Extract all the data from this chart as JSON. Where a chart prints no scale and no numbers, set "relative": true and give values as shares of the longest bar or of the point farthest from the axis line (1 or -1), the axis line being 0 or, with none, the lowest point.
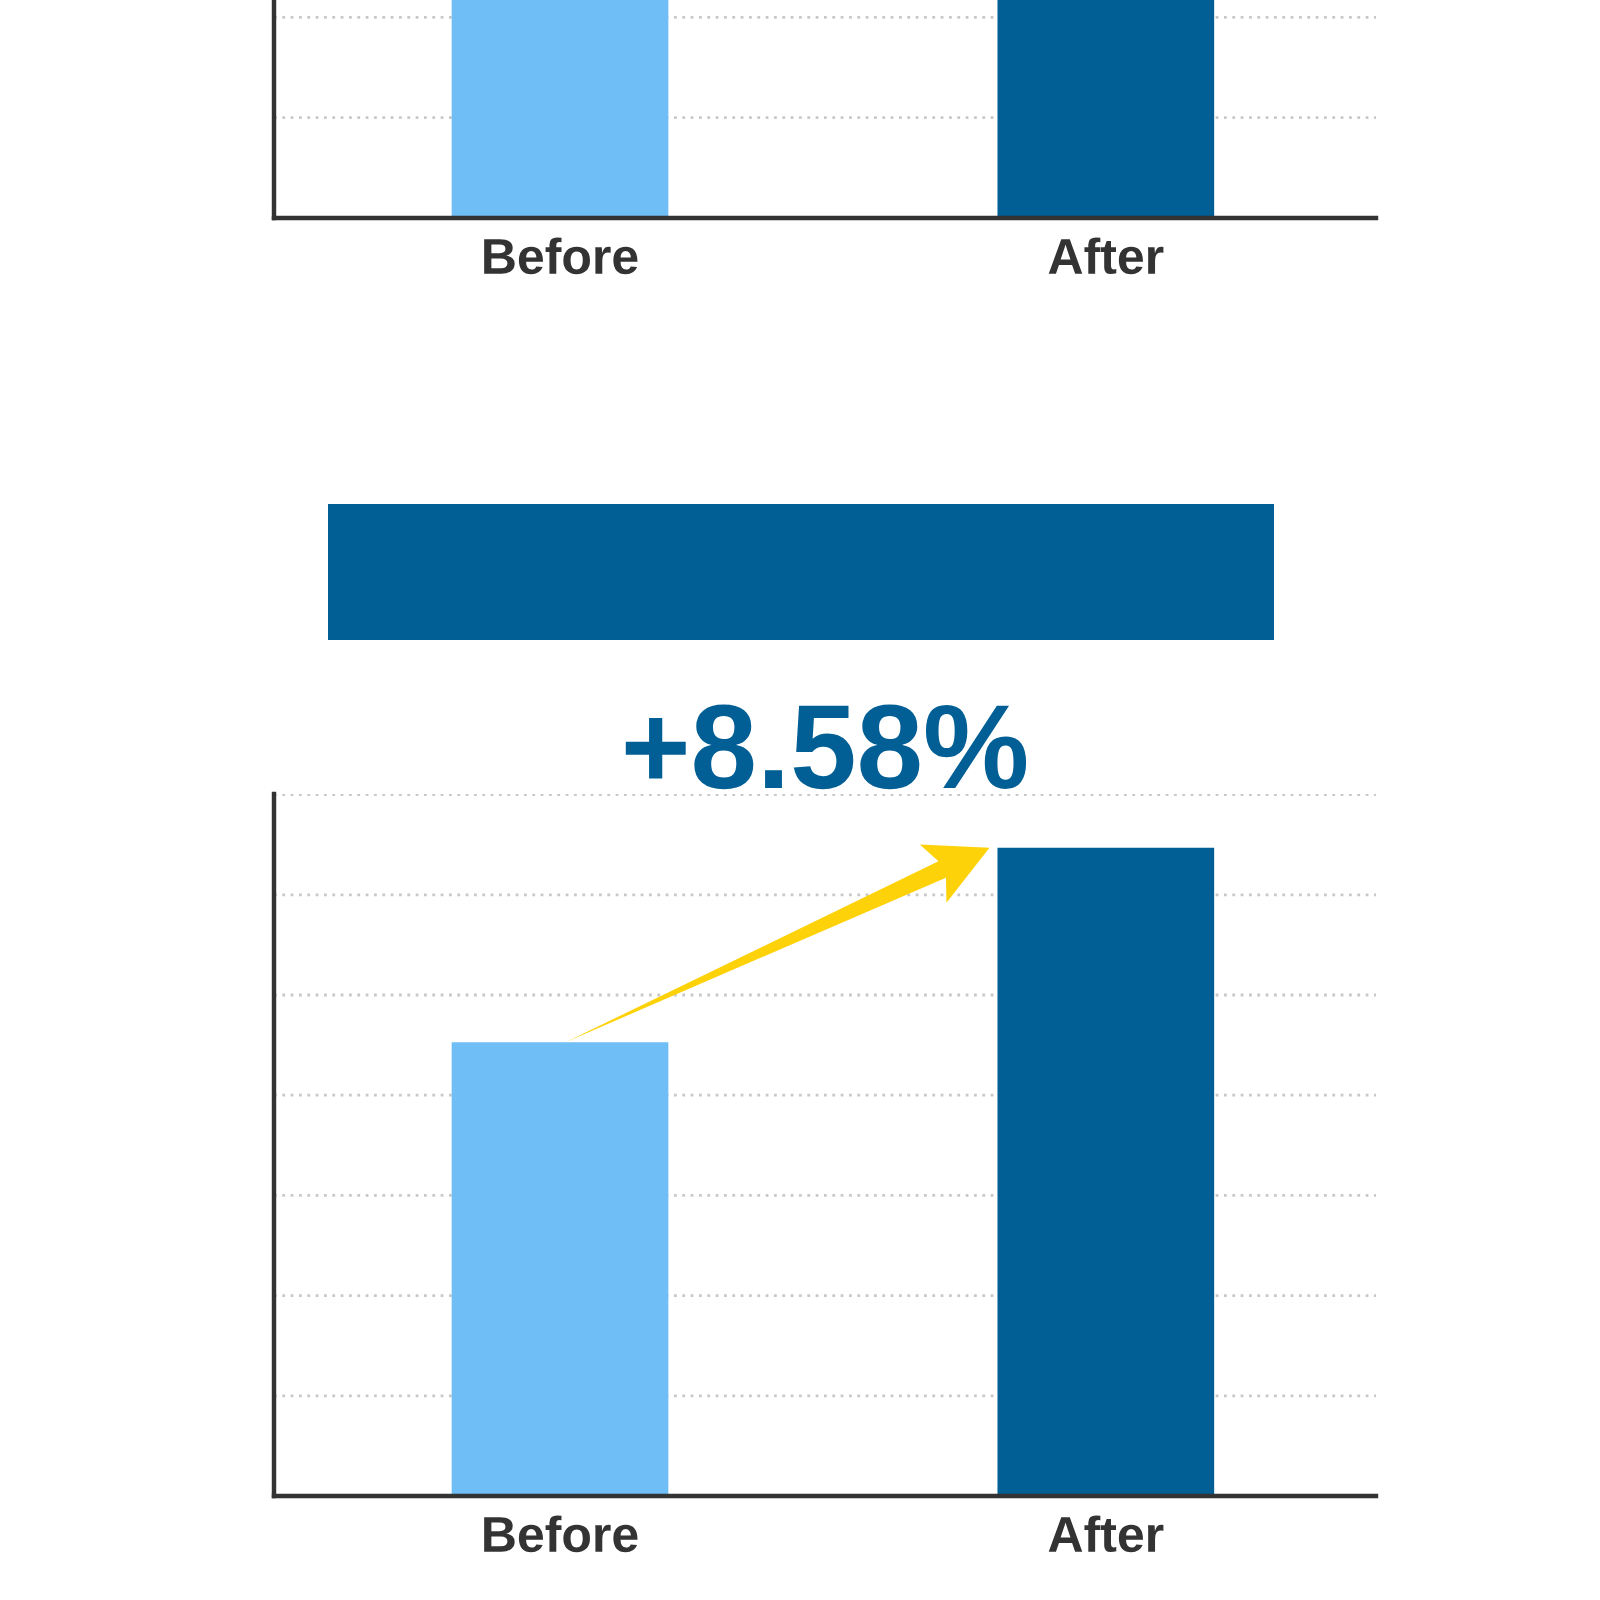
{
  "chart_data": [
    {
      "type": "bar",
      "categories": [
        "Before",
        "After"
      ],
      "values": [
        1,
        1
      ],
      "colors": [
        "#70bef6",
        "#015f95"
      ],
      "relative": true,
      "ref_lines": [
        {
          "axis": "y",
          "value": 0.46,
          "color": "#c8c8c8",
          "line_style": "dotted"
        },
        {
          "axis": "y",
          "value": 0.92,
          "color": "#c8c8c8",
          "line_style": "dotted"
        }
      ]
    },
    {
      "type": "bar",
      "categories": [
        "Before",
        "After"
      ],
      "values": [
        0.7,
        1
      ],
      "colors": [
        "#70bef6",
        "#015f95"
      ],
      "relative": true,
      "grid": true,
      "annotations": [
        "+8.58%"
      ]
    }
  ]
}
